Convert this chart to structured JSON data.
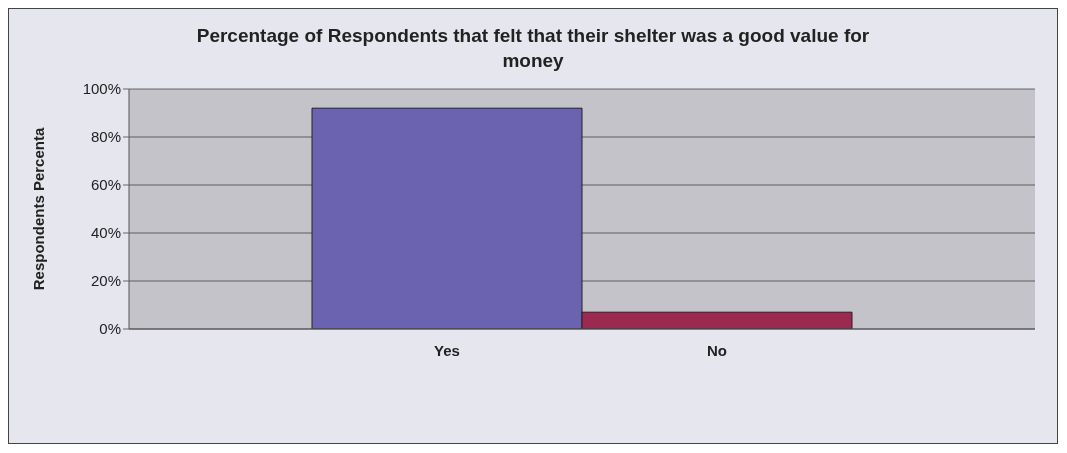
{
  "chart_data": {
    "type": "bar",
    "title": "Percentage of Respondents that felt that their shelter was a good value for money",
    "ylabel": "Respondents Percenta",
    "categories": [
      "Yes",
      "No"
    ],
    "values": [
      92,
      7
    ],
    "colors": [
      "#6b63b0",
      "#9c2a50"
    ],
    "ylim": [
      0,
      100
    ],
    "yticks": [
      {
        "value": 0,
        "label": "0%"
      },
      {
        "value": 20,
        "label": "20%"
      },
      {
        "value": 40,
        "label": "40%"
      },
      {
        "value": 60,
        "label": "60%"
      },
      {
        "value": 80,
        "label": "80%"
      },
      {
        "value": 100,
        "label": "100%"
      }
    ],
    "grid": "y"
  }
}
